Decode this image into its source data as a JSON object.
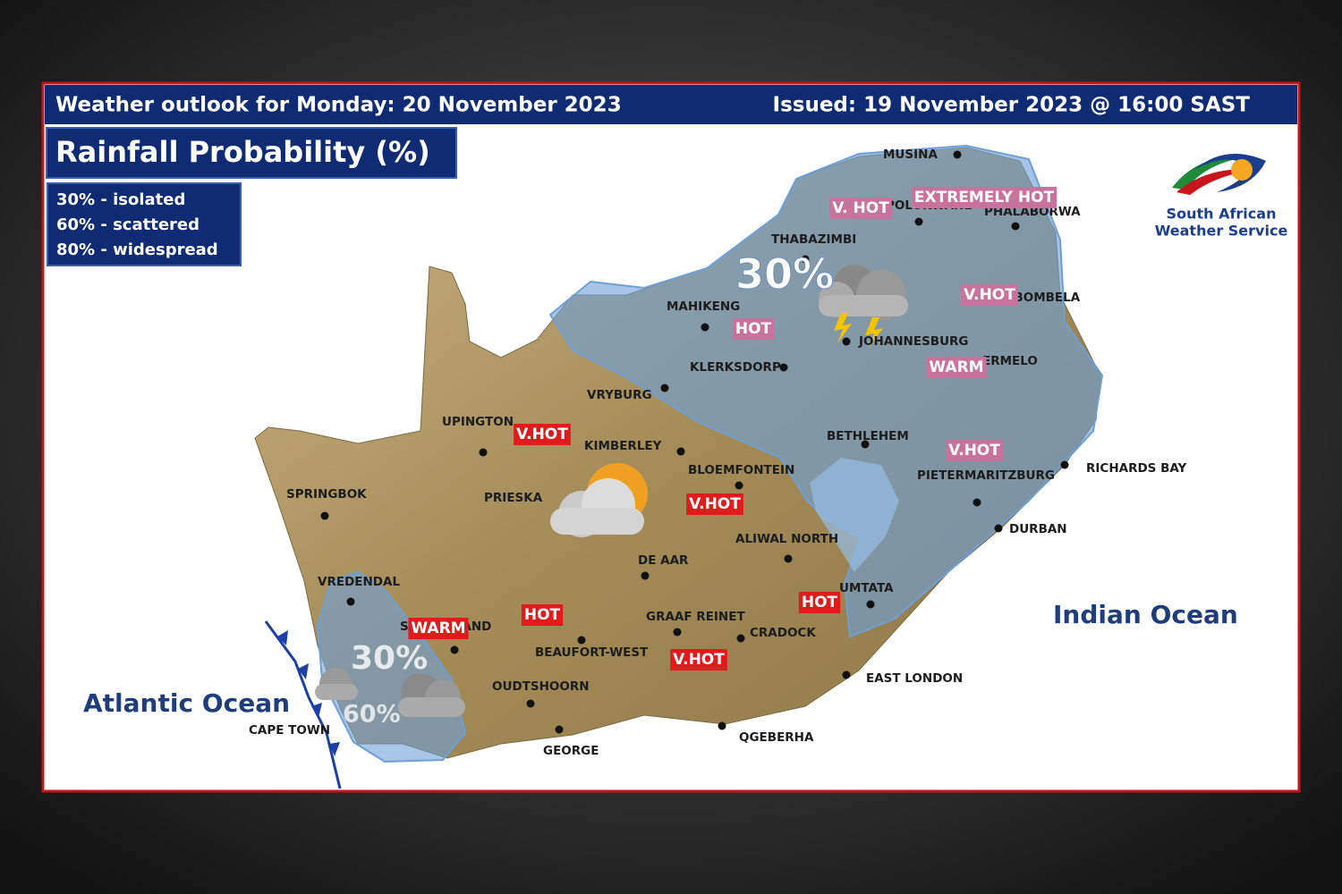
{
  "header": {
    "title": "Weather outlook for Monday: 20 November 2023",
    "issued": "Issued: 19 November 2023 @ 16:00 SAST"
  },
  "panel_title": "Rainfall Probability (%)",
  "legend": [
    "30% - isolated",
    "60% - scattered",
    "80% - widespread"
  ],
  "logo": {
    "line1": "South African",
    "line2": "Weather Service"
  },
  "oceans": [
    "Atlantic Ocean",
    "Indian Ocean"
  ],
  "probabilities": [
    "30%",
    "30%",
    "60%"
  ],
  "towns": [
    "MUSINA",
    "POLOKWANE",
    "PHALABORWA",
    "THABAZIMBI",
    "MAHIKENG",
    "JOHANNESBURG",
    "KLERKSDORP",
    "MBOMBELA",
    "ERMELO",
    "VRYBURG",
    "UPINGTON",
    "KIMBERLEY",
    "BLOEMFONTEIN",
    "BETHLEHEM",
    "PIETERMARITZBURG",
    "RICHARDS BAY",
    "SPRINGBOK",
    "PRIESKA",
    "DURBAN",
    "ALIWAL NORTH",
    "DE AAR",
    "UMTATA",
    "VREDENDAL",
    "SUTHERLAND",
    "GRAAF REINET",
    "CRADOCK",
    "BEAUFORT-WEST",
    "OUDTSHOORN",
    "EAST LONDON",
    "CAPE TOWN",
    "GEORGE",
    "QGEBERHA"
  ],
  "temperature_labels": [
    "V. HOT",
    "EXTREMELY HOT",
    "HOT",
    "V.HOT",
    "WARM",
    "V.HOT",
    "V.HOT",
    "V.HOT",
    "HOT",
    "HOT",
    "WARM",
    "V.HOT"
  ]
}
